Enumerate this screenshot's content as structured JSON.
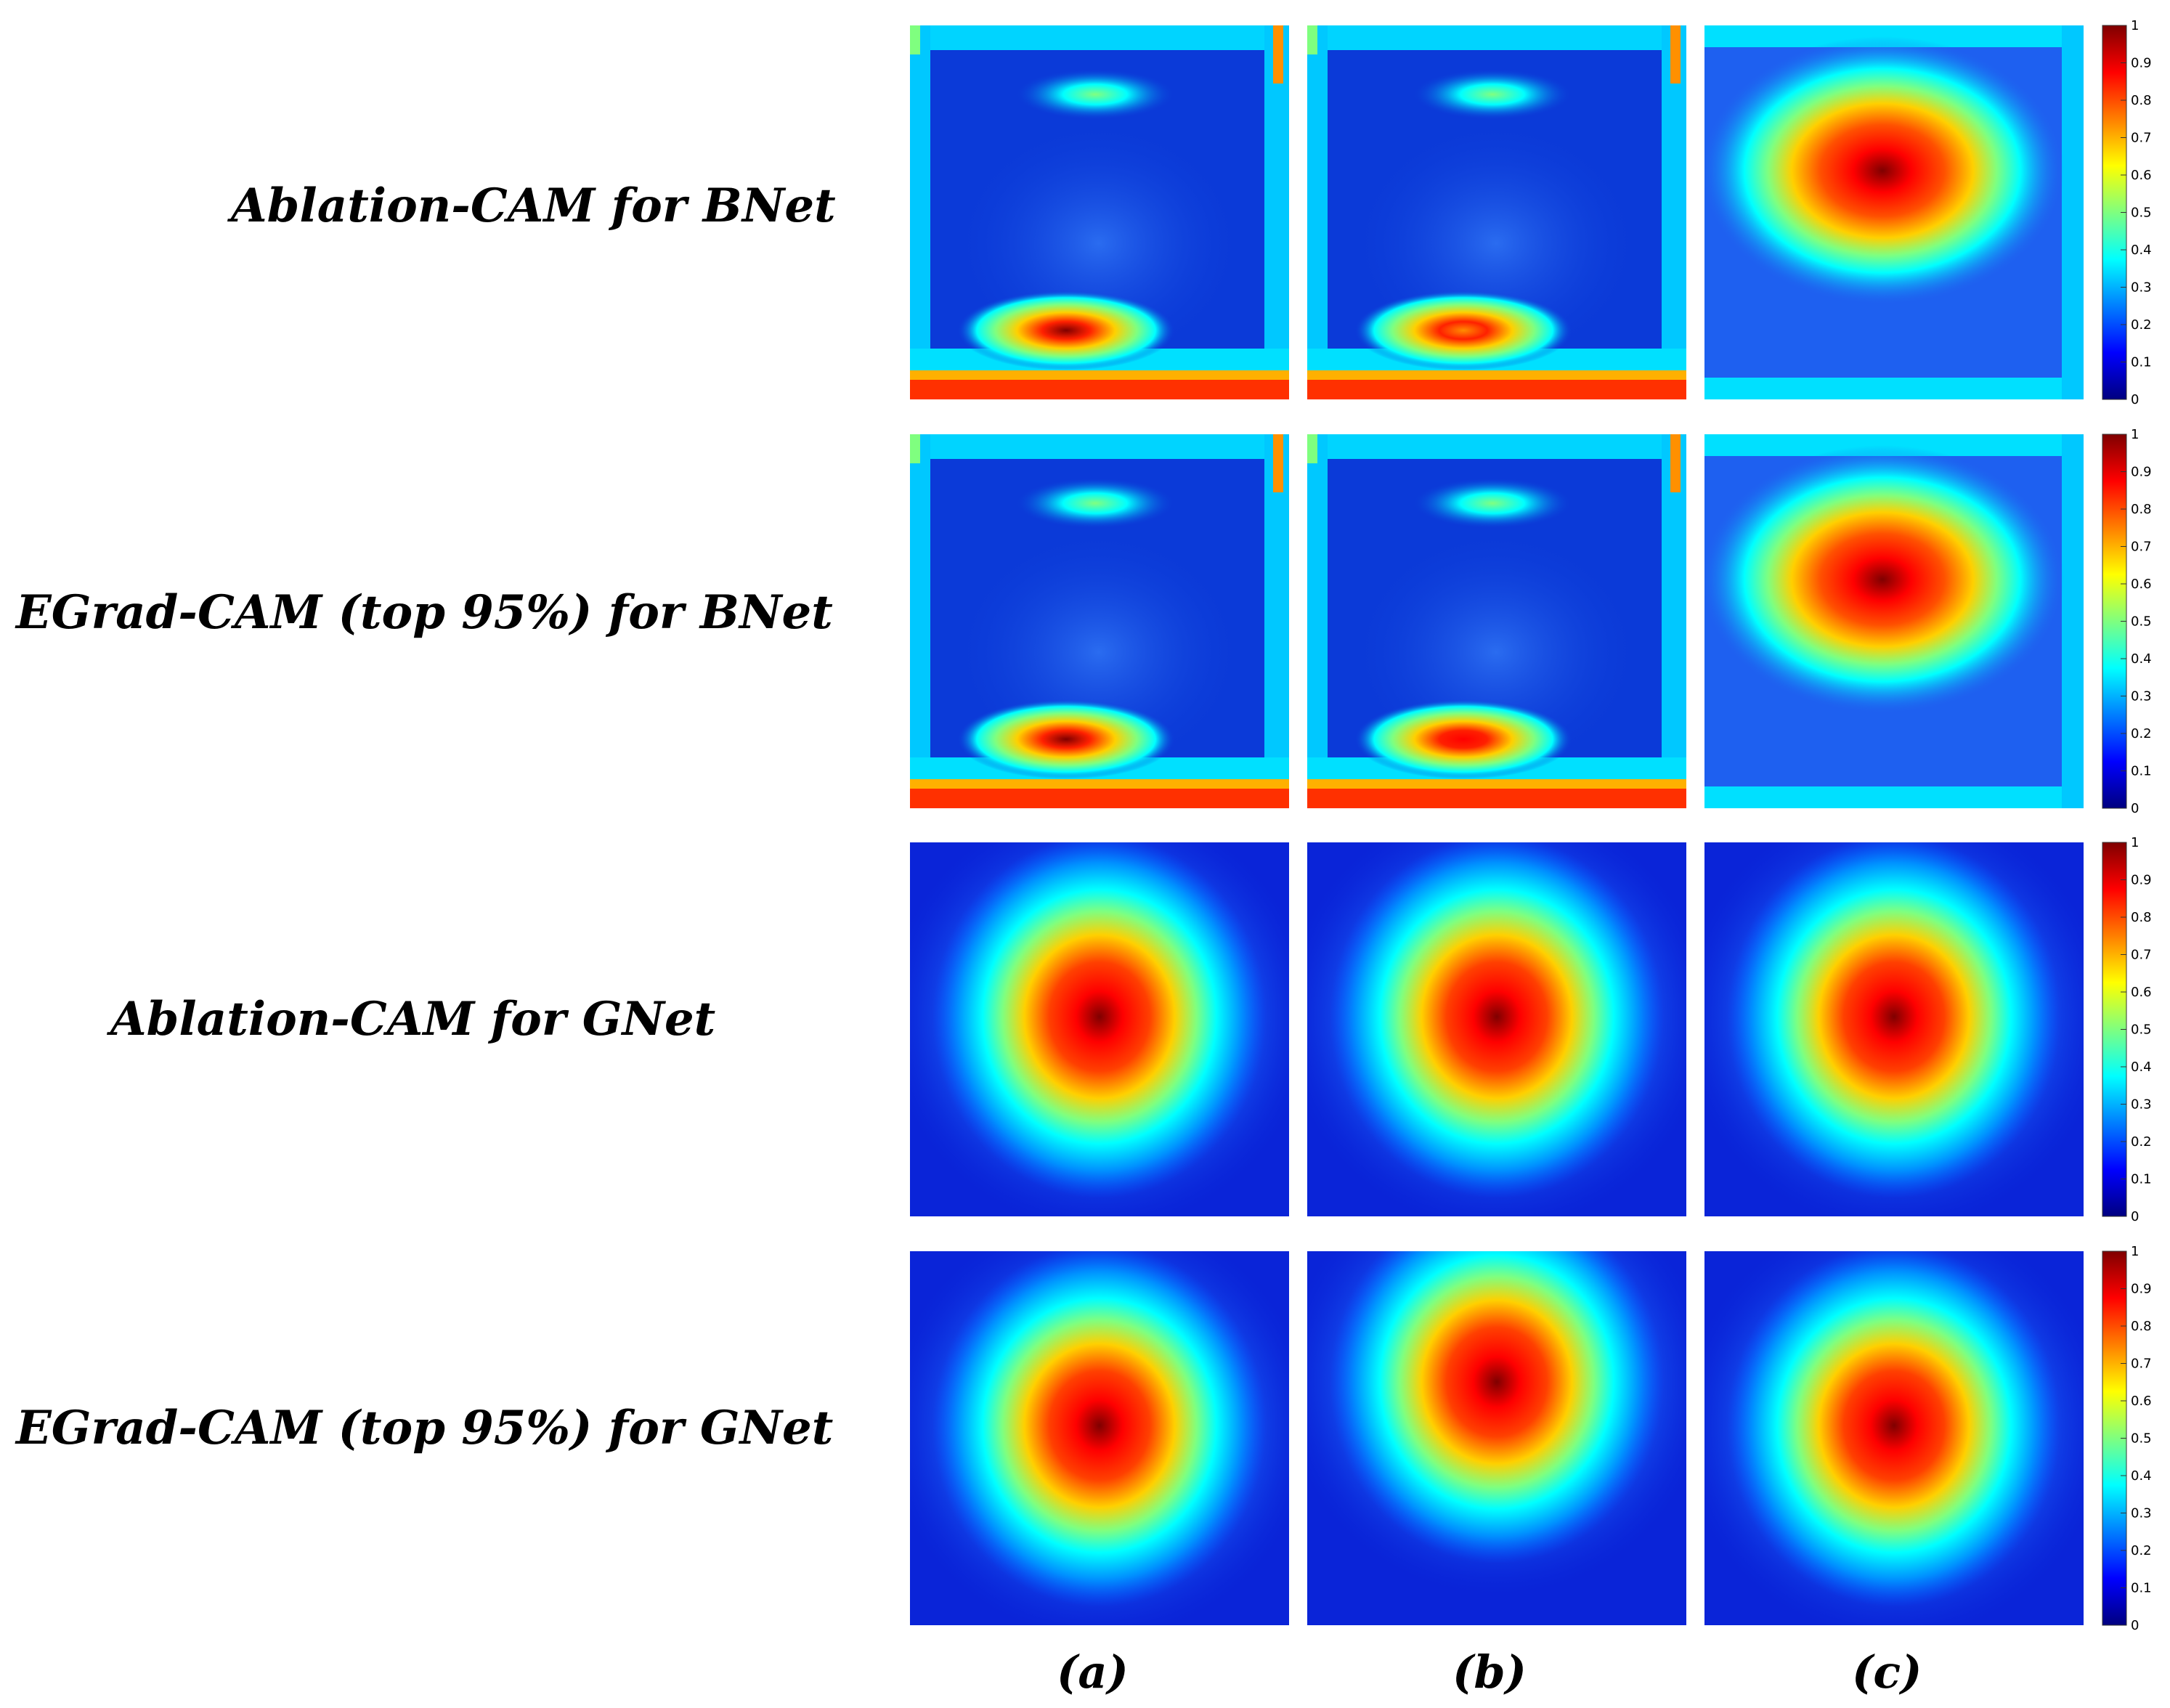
{
  "figure": {
    "rows": [
      {
        "label": "Ablation-CAM for BNet",
        "model": "BNet",
        "method": "Ablation-CAM",
        "panels": [
          {
            "column": "a",
            "pattern": "border-bottom-hotspot",
            "hotspot": "dark red"
          },
          {
            "column": "b",
            "pattern": "border-bottom-hotspot",
            "hotspot": "orange"
          },
          {
            "column": "c",
            "pattern": "upper-center-blob",
            "hotspot": "dark red"
          }
        ]
      },
      {
        "label": "EGrad-CAM (top 95%) for BNet",
        "model": "BNet",
        "method": "EGrad-CAM (top 95%)",
        "panels": [
          {
            "column": "a",
            "pattern": "border-bottom-hotspot",
            "hotspot": "dark red"
          },
          {
            "column": "b",
            "pattern": "border-bottom-hotspot",
            "hotspot": "red"
          },
          {
            "column": "c",
            "pattern": "upper-center-blob",
            "hotspot": "dark red"
          }
        ]
      },
      {
        "label": "Ablation-CAM for GNet",
        "model": "GNet",
        "method": "Ablation-CAM",
        "panels": [
          {
            "column": "a",
            "pattern": "center-blob",
            "hotspot": "dark red"
          },
          {
            "column": "b",
            "pattern": "center-blob",
            "hotspot": "dark red"
          },
          {
            "column": "c",
            "pattern": "center-blob",
            "hotspot": "dark red"
          }
        ]
      },
      {
        "label": "EGrad-CAM (top 95%) for GNet",
        "model": "GNet",
        "method": "EGrad-CAM (top 95%)",
        "panels": [
          {
            "column": "a",
            "pattern": "center-blob",
            "hotspot": "dark red"
          },
          {
            "column": "b",
            "pattern": "upper-blob",
            "hotspot": "dark red"
          },
          {
            "column": "c",
            "pattern": "center-blob",
            "hotspot": "dark red"
          }
        ]
      }
    ],
    "columns": [
      {
        "label": "(a)"
      },
      {
        "label": "(b)"
      },
      {
        "label": "(c)"
      }
    ],
    "colorbar": {
      "min": 0,
      "max": 1,
      "ticks": [
        "0",
        "0.1",
        "0.2",
        "0.3",
        "0.4",
        "0.5",
        "0.6",
        "0.7",
        "0.8",
        "0.9",
        "1"
      ],
      "colormap": [
        "#00007f",
        "#0000ff",
        "#007fff",
        "#00ffff",
        "#7fff7f",
        "#ffff00",
        "#ff7f00",
        "#ff0000",
        "#7f0000"
      ]
    }
  }
}
